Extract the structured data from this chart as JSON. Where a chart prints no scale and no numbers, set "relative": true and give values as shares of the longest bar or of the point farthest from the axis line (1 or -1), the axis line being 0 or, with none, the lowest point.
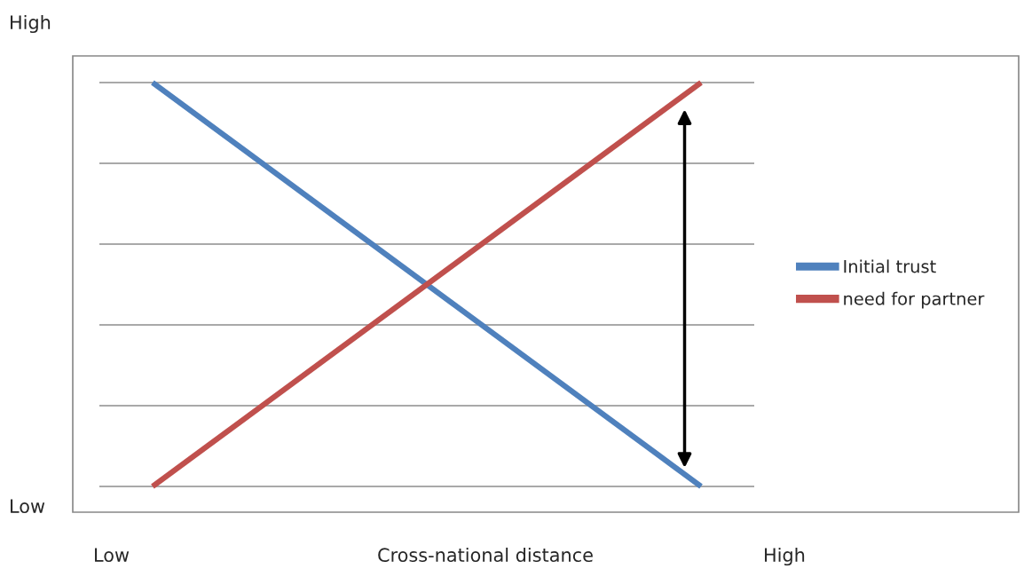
{
  "chart_data": {
    "type": "line",
    "relative": true,
    "annotations": [
      "High",
      "Low",
      "Low",
      "High",
      "Cross-national distance"
    ],
    "categories": [
      null,
      null
    ],
    "series": [
      {
        "name": "Initial trust",
        "color": "#4f81bd",
        "values": [
          1,
          0.06
        ]
      },
      {
        "name": "need for partner",
        "color": "#c0504d",
        "values": [
          0.06,
          1
        ]
      }
    ],
    "ref_lines": [
      {
        "axis": "y",
        "value": 0.06,
        "color": "#8c8c8c"
      },
      {
        "axis": "y",
        "value": 0.248,
        "color": "#8c8c8c"
      },
      {
        "axis": "y",
        "value": 0.436,
        "color": "#8c8c8c"
      },
      {
        "axis": "y",
        "value": 0.624,
        "color": "#8c8c8c"
      },
      {
        "axis": "y",
        "value": 0.812,
        "color": "#8c8c8c"
      },
      {
        "axis": "y",
        "value": 1,
        "color": "#8c8c8c"
      }
    ],
    "legend": "right",
    "marker": "none",
    "line_style": "solid"
  }
}
